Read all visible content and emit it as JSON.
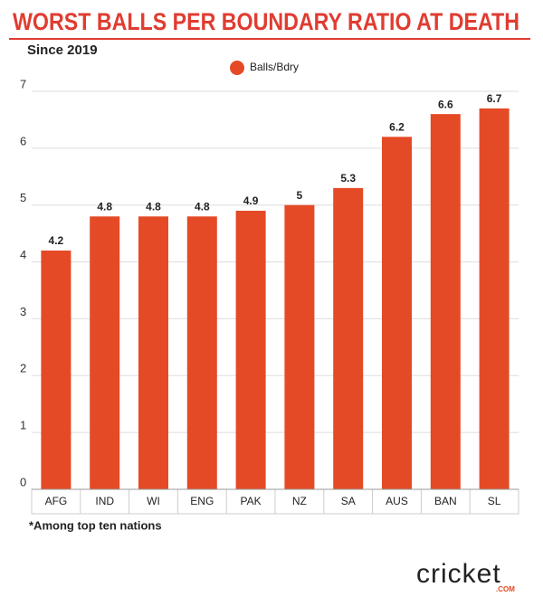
{
  "chart_data": {
    "type": "bar",
    "title": "WORST BALLS PER BOUNDARY RATIO AT DEATH",
    "subtitle": "Since 2019",
    "categories": [
      "AFG",
      "IND",
      "WI",
      "ENG",
      "PAK",
      "NZ",
      "SA",
      "AUS",
      "BAN",
      "SL"
    ],
    "series": [
      {
        "name": "Balls/Bdry",
        "color": "#e44a26",
        "values": [
          4.2,
          4.8,
          4.8,
          4.8,
          4.9,
          5,
          5.3,
          6.2,
          6.6,
          6.7
        ]
      }
    ],
    "ylim": [
      0,
      7
    ],
    "yticks": [
      0,
      1,
      2,
      3,
      4,
      5,
      6,
      7
    ],
    "grid": true,
    "note": "*Among top ten nations"
  },
  "logo": {
    "text": "cricket",
    "suffix": ".COM"
  }
}
